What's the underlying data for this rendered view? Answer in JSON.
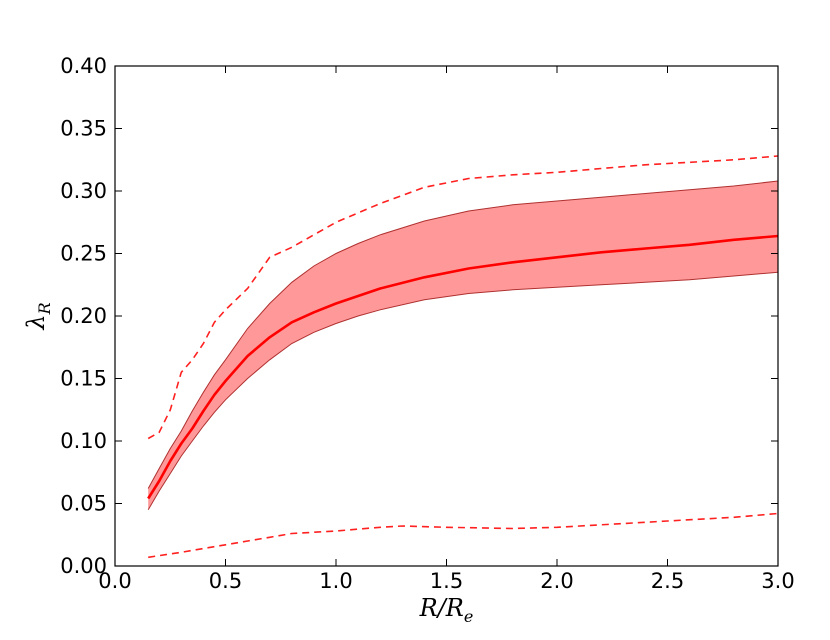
{
  "chart_data": {
    "type": "area",
    "xlabel": "R/R_e",
    "ylabel": "λ_R",
    "labels": {
      "x_main": "R/R",
      "x_sub": "e",
      "y_main": "λ",
      "y_sub": "R"
    },
    "xlim": [
      0.0,
      3.0
    ],
    "ylim": [
      0.0,
      0.4
    ],
    "grid": false,
    "legend": "none",
    "x_ticks": [
      "0.0",
      "0.5",
      "1.0",
      "1.5",
      "2.0",
      "2.5",
      "3.0"
    ],
    "y_ticks": [
      "0.00",
      "0.05",
      "0.10",
      "0.15",
      "0.20",
      "0.25",
      "0.30",
      "0.35",
      "0.40"
    ],
    "colors": {
      "line": "#ff0000",
      "band_fill": "#ff9999",
      "band_edge": "#b03030",
      "dashed": "#ff2020"
    },
    "series": [
      {
        "style": "solid",
        "x": [
          0.15,
          0.2,
          0.25,
          0.3,
          0.35,
          0.4,
          0.45,
          0.5,
          0.6,
          0.7,
          0.8,
          0.9,
          1.0,
          1.1,
          1.2,
          1.4,
          1.6,
          1.8,
          2.0,
          2.2,
          2.4,
          2.6,
          2.8,
          3.0
        ],
        "y": [
          0.054,
          0.068,
          0.084,
          0.098,
          0.11,
          0.124,
          0.137,
          0.148,
          0.168,
          0.183,
          0.195,
          0.203,
          0.21,
          0.216,
          0.222,
          0.231,
          0.238,
          0.243,
          0.247,
          0.251,
          0.254,
          0.257,
          0.261,
          0.264
        ]
      },
      {
        "style": "band",
        "x": [
          0.15,
          0.2,
          0.25,
          0.3,
          0.35,
          0.4,
          0.45,
          0.5,
          0.6,
          0.7,
          0.8,
          0.9,
          1.0,
          1.1,
          1.2,
          1.4,
          1.6,
          1.8,
          2.0,
          2.2,
          2.4,
          2.6,
          2.8,
          3.0
        ],
        "upper": [
          0.062,
          0.078,
          0.094,
          0.108,
          0.124,
          0.139,
          0.153,
          0.165,
          0.19,
          0.21,
          0.227,
          0.24,
          0.25,
          0.258,
          0.265,
          0.276,
          0.284,
          0.289,
          0.292,
          0.295,
          0.298,
          0.301,
          0.304,
          0.308
        ],
        "lower": [
          0.045,
          0.06,
          0.074,
          0.088,
          0.1,
          0.112,
          0.123,
          0.133,
          0.15,
          0.165,
          0.178,
          0.187,
          0.194,
          0.2,
          0.205,
          0.213,
          0.218,
          0.221,
          0.223,
          0.225,
          0.227,
          0.229,
          0.232,
          0.235
        ]
      },
      {
        "style": "dashed",
        "x": [
          0.15,
          0.2,
          0.25,
          0.3,
          0.35,
          0.4,
          0.45,
          0.5,
          0.6,
          0.7,
          0.8,
          0.9,
          1.0,
          1.2,
          1.4,
          1.6,
          1.8,
          2.0,
          2.2,
          2.4,
          2.6,
          2.8,
          3.0
        ],
        "y": [
          0.102,
          0.107,
          0.125,
          0.155,
          0.165,
          0.178,
          0.195,
          0.205,
          0.222,
          0.247,
          0.255,
          0.265,
          0.275,
          0.29,
          0.303,
          0.31,
          0.313,
          0.315,
          0.318,
          0.321,
          0.323,
          0.325,
          0.328
        ]
      },
      {
        "style": "dashed",
        "x": [
          0.15,
          0.3,
          0.4,
          0.5,
          0.6,
          0.7,
          0.8,
          1.0,
          1.2,
          1.3,
          1.5,
          1.8,
          2.0,
          2.2,
          2.5,
          2.8,
          3.0
        ],
        "y": [
          0.007,
          0.011,
          0.014,
          0.017,
          0.02,
          0.023,
          0.026,
          0.028,
          0.031,
          0.032,
          0.031,
          0.03,
          0.031,
          0.033,
          0.036,
          0.039,
          0.042
        ]
      }
    ]
  }
}
